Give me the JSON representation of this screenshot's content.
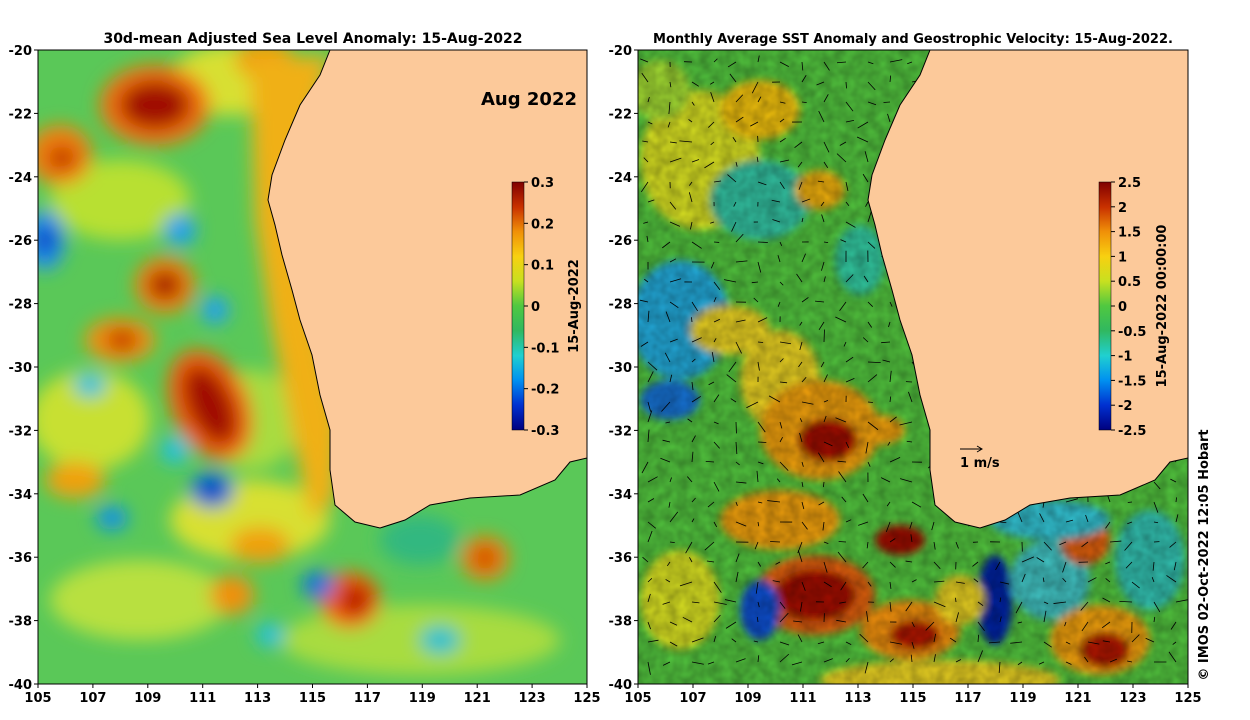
{
  "left_panel": {
    "title": "30d-mean Adjusted Sea Level Anomaly: 15-Aug-2022",
    "month_label": "Aug 2022",
    "colorbar_label": "15-Aug-2022",
    "colorbar_ticks": [
      "0.3",
      "0.2",
      "0.1",
      "0",
      "-0.1",
      "-0.2",
      "-0.3"
    ],
    "x_ticks": [
      "105",
      "107",
      "109",
      "111",
      "113",
      "115",
      "117",
      "119",
      "121",
      "123",
      "125"
    ],
    "y_ticks": [
      "-20",
      "-22",
      "-24",
      "-26",
      "-28",
      "-30",
      "-32",
      "-34",
      "-36",
      "-38",
      "-40"
    ]
  },
  "right_panel": {
    "title": "Monthly Average SST Anomaly  and Geostrophic Velocity: 15-Aug-2022.",
    "colorbar_label": "15-Aug-2022 00:00:00",
    "colorbar_ticks": [
      "2.5",
      "2",
      "1.5",
      "1",
      "0.5",
      "0",
      "-0.5",
      "-1",
      "-1.5",
      "-2",
      "-2.5"
    ],
    "scale_label": "1 m/s",
    "x_ticks": [
      "105",
      "107",
      "109",
      "111",
      "113",
      "115",
      "117",
      "119",
      "121",
      "123",
      "125"
    ],
    "y_ticks": [
      "-20",
      "-22",
      "-24",
      "-26",
      "-28",
      "-30",
      "-32",
      "-34",
      "-36",
      "-38",
      "-40"
    ]
  },
  "credit": "© IMOS 02-Oct-2022 12:05 Hobart",
  "colors": {
    "land": "#fcc99a",
    "ocean_base": "#55c85a",
    "coastline": "#000000"
  },
  "colormap": [
    "#00007f",
    "#0030d0",
    "#0090f0",
    "#20d0d0",
    "#40c060",
    "#90d040",
    "#e8e820",
    "#f8b810",
    "#f07008",
    "#c02000",
    "#800000"
  ]
}
